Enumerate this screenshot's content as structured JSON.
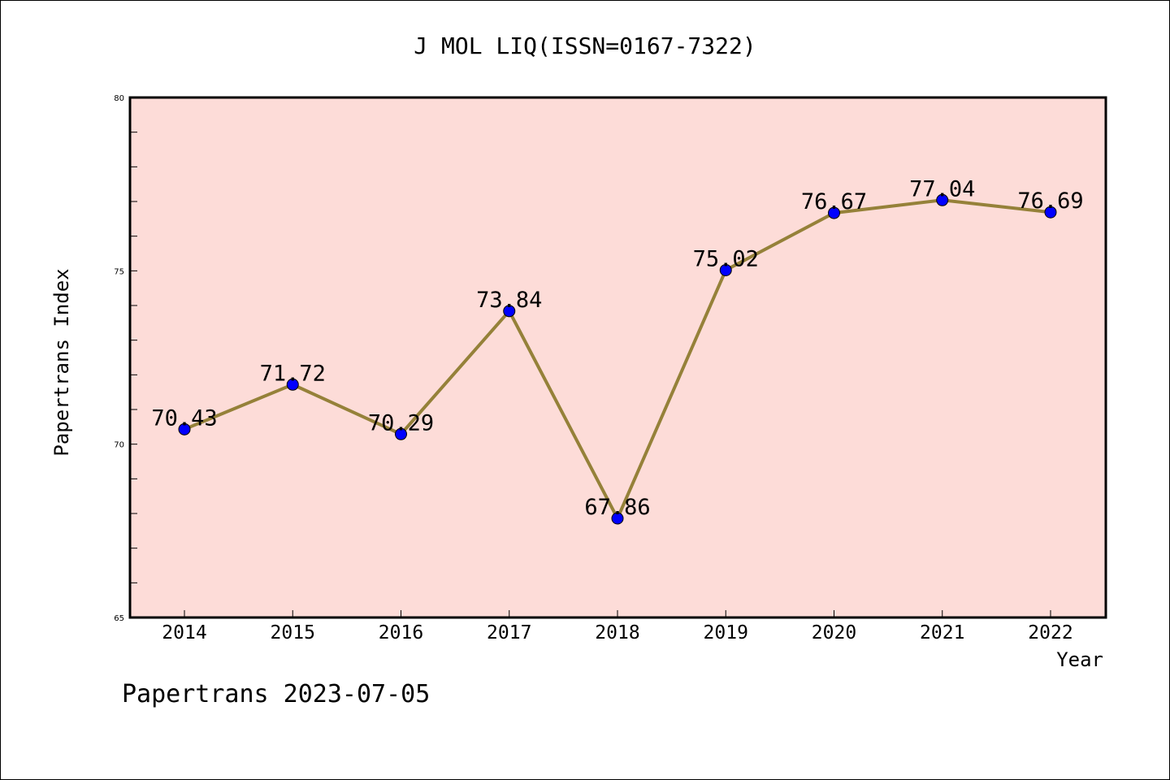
{
  "chart_data": {
    "type": "line",
    "title": "J MOL LIQ(ISSN=0167-7322)",
    "xlabel": "Year",
    "ylabel": "Papertrans Index",
    "footer": "Papertrans 2023-07-05",
    "categories": [
      "2014",
      "2015",
      "2016",
      "2017",
      "2018",
      "2019",
      "2020",
      "2021",
      "2022"
    ],
    "values": [
      70.43,
      71.72,
      70.29,
      73.84,
      67.86,
      75.02,
      76.67,
      77.04,
      76.69
    ],
    "value_labels": [
      "70.43",
      "71.72",
      "70.29",
      "73.84",
      "67.86",
      "75.02",
      "76.67",
      "77.04",
      "76.69"
    ],
    "ylim": [
      65,
      80
    ],
    "yticks": [
      65,
      70,
      75,
      80
    ],
    "ytick_labels": [
      "65",
      "70",
      "75",
      "80"
    ],
    "grid": false,
    "colors": {
      "plot_background": "#fddcd8",
      "line": "#958139",
      "marker": "#0000ff",
      "axis": "#000000"
    }
  }
}
